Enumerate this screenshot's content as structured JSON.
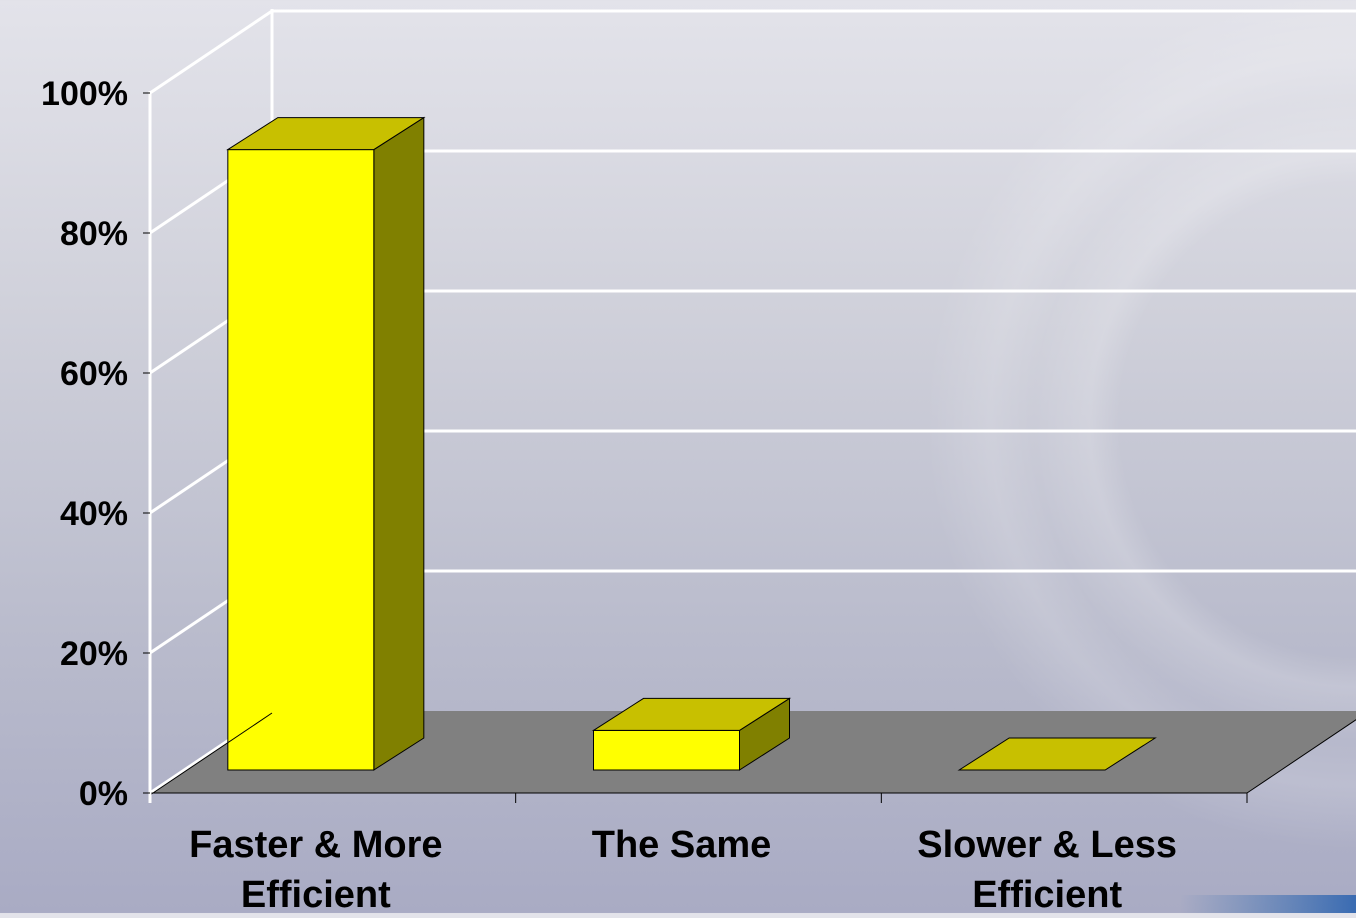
{
  "chart_data": {
    "type": "bar",
    "categories": [
      "Faster & More Efficient",
      "The Same",
      "Slower & Less Efficient"
    ],
    "category_lines": [
      [
        "Faster & More",
        "Efficient"
      ],
      [
        "The Same"
      ],
      [
        "Slower & Less",
        "Efficient"
      ]
    ],
    "values": [
      94,
      6,
      0
    ],
    "ylim": [
      0,
      100
    ],
    "yticks": [
      "0%",
      "20%",
      "40%",
      "60%",
      "80%",
      "100%"
    ],
    "style": "3d-column",
    "grid": true,
    "colors": {
      "bar_front": "#ffff00",
      "bar_top": "#c8c000",
      "bar_side": "#808000",
      "floor": "#808080",
      "grid": "#ffffff",
      "axis": "#000000"
    }
  }
}
